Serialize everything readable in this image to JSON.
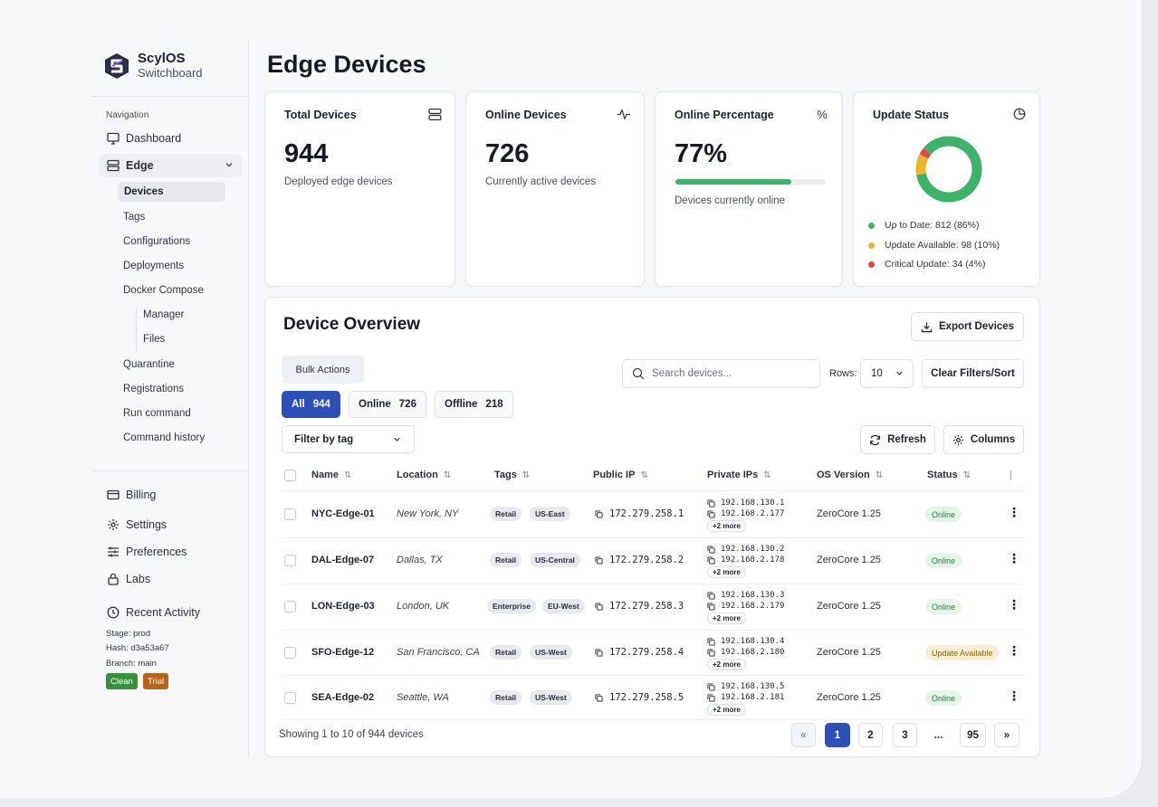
{
  "brand": {
    "name": "ScylOS",
    "product": "Switchboard"
  },
  "sidebar": {
    "nav_label": "Navigation",
    "dashboard": "Dashboard",
    "edge": "Edge",
    "edge_items": [
      "Devices",
      "Tags",
      "Configurations",
      "Deployments",
      "Docker Compose"
    ],
    "docker_items": [
      "Manager",
      "Files"
    ],
    "edge_items_2": [
      "Quarantine",
      "Registrations",
      "Run command",
      "Command history"
    ],
    "billing": "Billing",
    "settings": "Settings",
    "preferences": "Preferences",
    "labs": "Labs",
    "recent_activity": "Recent Activity",
    "stage": "Stage: prod",
    "hash": "Hash: d3a53a67",
    "branch": "Branch: main",
    "badge_clean": "Clean",
    "badge_trial": "Trial",
    "colors": {
      "clean": "#3a8f3f",
      "trial": "#b8641c"
    }
  },
  "page": {
    "title": "Edge Devices"
  },
  "stats": {
    "total": {
      "title": "Total Devices",
      "value": "944",
      "sub": "Deployed edge devices",
      "icon": "server-icon"
    },
    "online": {
      "title": "Online Devices",
      "value": "726",
      "sub": "Currently active devices",
      "icon": "activity-icon"
    },
    "percentage": {
      "title": "Online Percentage",
      "value": "77%",
      "sub": "Devices currently online",
      "icon": "percent-icon",
      "progress": 0.77
    },
    "update": {
      "title": "Update Status",
      "icon": "pie-chart-icon",
      "legend": [
        {
          "label": "Up to Date: 812 (86%)",
          "value": 812,
          "color": "#3db36a"
        },
        {
          "label": "Update Available: 98 (10%)",
          "value": 98,
          "color": "#f0b429"
        },
        {
          "label": "Critical Update: 34 (4%)",
          "value": 34,
          "color": "#e5483f"
        }
      ]
    }
  },
  "overview": {
    "title": "Device Overview",
    "export_label": "Export Devices",
    "bulk_label": "Bulk Actions",
    "search_placeholder": "Search devices...",
    "rows_label": "Rows:",
    "rows_value": "10",
    "clear_label": "Clear Filters/Sort",
    "filters": [
      {
        "label": "All",
        "count": "944"
      },
      {
        "label": "Online",
        "count": "726"
      },
      {
        "label": "Offline",
        "count": "218"
      }
    ],
    "tag_filter": "Filter by tag",
    "refresh_label": "Refresh",
    "columns_label": "Columns",
    "headers": [
      "Name",
      "Location",
      "Tags",
      "Public IP",
      "Private IPs",
      "OS Version",
      "Status"
    ],
    "rows": [
      {
        "name": "NYC-Edge-01",
        "location": "New York, NY",
        "tags": [
          "Retail",
          "US-East"
        ],
        "public_ip": "172.279.258.1",
        "private_ips": [
          "192.168.130.1",
          "192.168.2.177"
        ],
        "more": "+2 more",
        "os": "ZeroCore 1.25",
        "status": "Online"
      },
      {
        "name": "DAL-Edge-07",
        "location": "Dallas, TX",
        "tags": [
          "Retail",
          "US-Central"
        ],
        "public_ip": "172.279.258.2",
        "private_ips": [
          "192.168.130.2",
          "192.168.2.178"
        ],
        "more": "+2 more",
        "os": "ZeroCore 1.25",
        "status": "Online"
      },
      {
        "name": "LON-Edge-03",
        "location": "London, UK",
        "tags": [
          "Enterprise",
          "EU-West"
        ],
        "public_ip": "172.279.258.3",
        "private_ips": [
          "192.168.130.3",
          "192.168.2.179"
        ],
        "more": "+2 more",
        "os": "ZeroCore 1.25",
        "status": "Online"
      },
      {
        "name": "SFO-Edge-12",
        "location": "San Francisco, CA",
        "tags": [
          "Retail",
          "US-West"
        ],
        "public_ip": "172.279.258.4",
        "private_ips": [
          "192.168.130.4",
          "192.168.2.180"
        ],
        "more": "+2 more",
        "os": "ZeroCore 1.25",
        "status": "Update Available"
      },
      {
        "name": "SEA-Edge-02",
        "location": "Seattle, WA",
        "tags": [
          "Retail",
          "US-West"
        ],
        "public_ip": "172.279.258.5",
        "private_ips": [
          "192.168.130.5",
          "192.168.2.181"
        ],
        "more": "+2 more",
        "os": "ZeroCore 1.25",
        "status": "Online"
      }
    ],
    "footer": "Showing 1 to 10 of 944 devices",
    "pagination": [
      "«",
      "1",
      "2",
      "3",
      "...",
      "95",
      "»"
    ]
  }
}
